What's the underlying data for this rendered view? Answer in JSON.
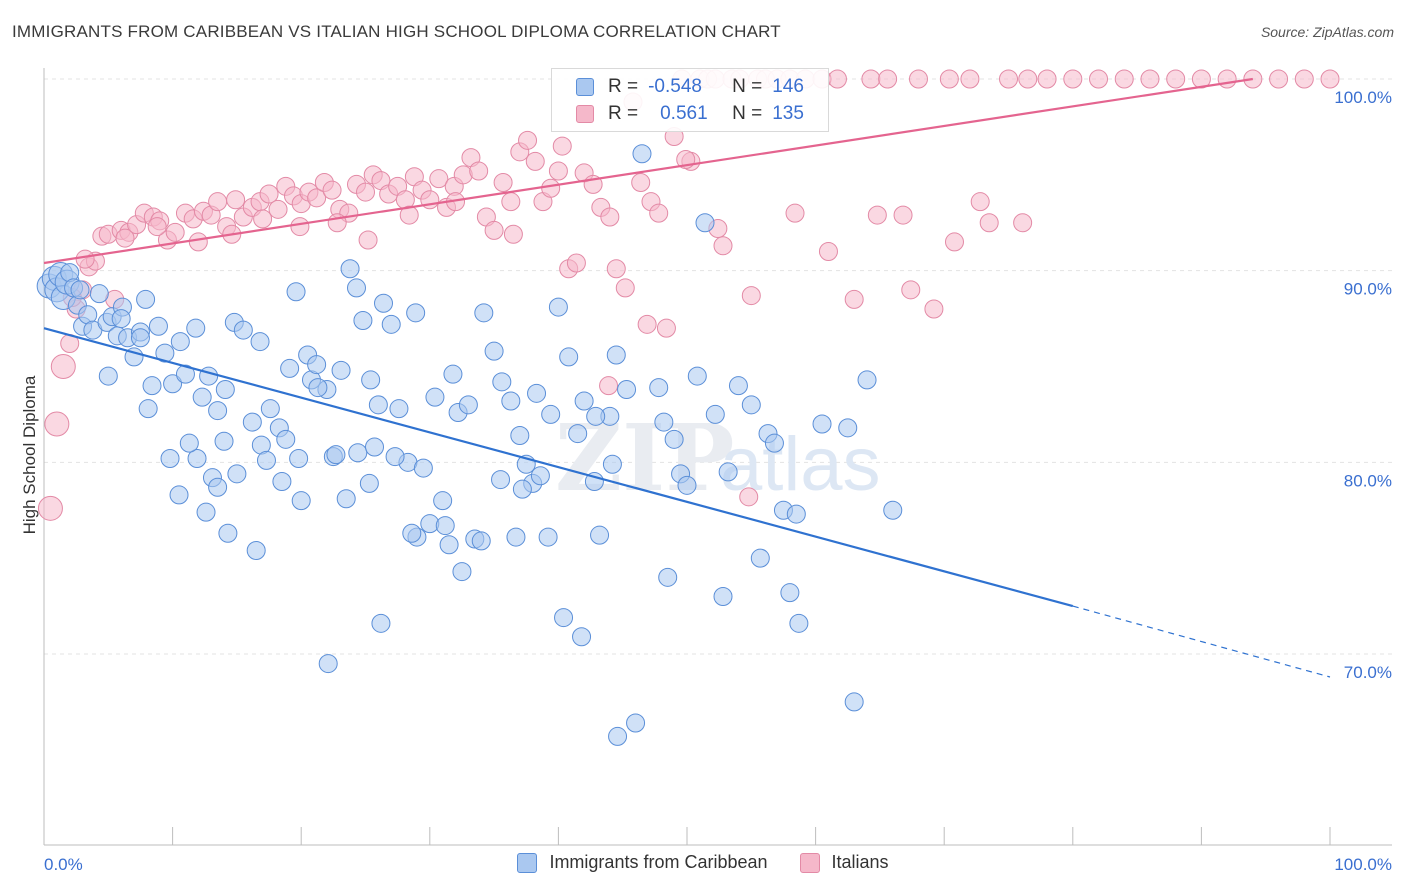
{
  "title": "IMMIGRANTS FROM CARIBBEAN VS ITALIAN HIGH SCHOOL DIPLOMA CORRELATION CHART",
  "source": "Source: ZipAtlas.com",
  "watermark": {
    "zip": "ZIP",
    "atlas": "atlas"
  },
  "legend": {
    "r_label": "R =",
    "n_label": "N =",
    "series": [
      {
        "name": "Immigrants from Caribbean",
        "r": "-0.548",
        "n": "146",
        "fill": "#aac8f0",
        "stroke": "#5b8fd8"
      },
      {
        "name": "Italians",
        "r": "0.561",
        "n": "135",
        "fill": "#f5b8ca",
        "stroke": "#e38aa6"
      }
    ]
  },
  "chart_data": {
    "type": "scatter",
    "title": "IMMIGRANTS FROM CARIBBEAN VS ITALIAN HIGH SCHOOL DIPLOMA CORRELATION CHART",
    "xlabel": "",
    "ylabel": "High School Diploma",
    "xlim": [
      0,
      100
    ],
    "ylim": [
      60,
      102.5
    ],
    "x_ticks": [
      0,
      100
    ],
    "x_tick_labels": [
      "0.0%",
      "100.0%"
    ],
    "y_ticks": [
      70,
      80,
      90,
      100
    ],
    "y_tick_labels": [
      "70.0%",
      "80.0%",
      "90.0%",
      "100.0%"
    ],
    "grid": true,
    "legend_position": "top-center",
    "colors": {
      "caribbean": "#4a86d8",
      "italians": "#e8739a",
      "caribbean_line": "#2f72d0",
      "italians_line": "#e4648f"
    },
    "series": [
      {
        "name": "Immigrants from Caribbean",
        "r": -0.548,
        "n": 146,
        "trend": {
          "x0": 0,
          "y0": 87.0,
          "x1": 80,
          "y1": 72.5,
          "dash_to_x": 100,
          "dash_to_y": 68.8
        },
        "points": [
          [
            0.4,
            89.2
          ],
          [
            0.8,
            89.6
          ],
          [
            1.0,
            89.0
          ],
          [
            1.3,
            89.8
          ],
          [
            1.5,
            88.6
          ],
          [
            1.8,
            89.4
          ],
          [
            2.0,
            89.9
          ],
          [
            2.3,
            89.1
          ],
          [
            2.6,
            88.2
          ],
          [
            3.0,
            87.1
          ],
          [
            3.4,
            87.7
          ],
          [
            3.8,
            86.9
          ],
          [
            4.3,
            88.8
          ],
          [
            4.9,
            87.3
          ],
          [
            5.3,
            87.6
          ],
          [
            5.7,
            86.6
          ],
          [
            6.1,
            88.1
          ],
          [
            6.5,
            86.5
          ],
          [
            7.0,
            85.5
          ],
          [
            7.5,
            86.8
          ],
          [
            7.9,
            88.5
          ],
          [
            8.4,
            84.0
          ],
          [
            8.9,
            87.1
          ],
          [
            9.4,
            85.7
          ],
          [
            10.0,
            84.1
          ],
          [
            10.6,
            86.3
          ],
          [
            11.0,
            84.6
          ],
          [
            11.8,
            87.0
          ],
          [
            12.3,
            83.4
          ],
          [
            12.8,
            84.5
          ],
          [
            13.5,
            82.7
          ],
          [
            14.0,
            81.1
          ],
          [
            14.8,
            87.3
          ],
          [
            15.5,
            86.9
          ],
          [
            16.2,
            82.1
          ],
          [
            16.9,
            80.9
          ],
          [
            17.6,
            82.8
          ],
          [
            18.3,
            81.8
          ],
          [
            19.1,
            84.9
          ],
          [
            19.6,
            88.9
          ],
          [
            20.5,
            85.6
          ],
          [
            20.8,
            84.3
          ],
          [
            21.2,
            85.1
          ],
          [
            22.0,
            83.8
          ],
          [
            22.5,
            80.3
          ],
          [
            23.1,
            84.8
          ],
          [
            23.8,
            90.1
          ],
          [
            24.3,
            89.1
          ],
          [
            24.8,
            87.4
          ],
          [
            25.4,
            84.3
          ],
          [
            26.0,
            83.0
          ],
          [
            26.4,
            88.3
          ],
          [
            27.0,
            87.2
          ],
          [
            27.6,
            82.8
          ],
          [
            28.3,
            80.0
          ],
          [
            28.9,
            87.8
          ],
          [
            29.5,
            79.7
          ],
          [
            30.4,
            83.4
          ],
          [
            31.0,
            78.0
          ],
          [
            31.8,
            84.6
          ],
          [
            32.2,
            82.6
          ],
          [
            33.0,
            83.0
          ],
          [
            33.5,
            76.0
          ],
          [
            34.2,
            87.8
          ],
          [
            35.0,
            85.8
          ],
          [
            35.6,
            84.2
          ],
          [
            36.3,
            83.2
          ],
          [
            37.0,
            81.4
          ],
          [
            37.5,
            79.9
          ],
          [
            38.0,
            78.9
          ],
          [
            38.6,
            79.3
          ],
          [
            39.4,
            82.5
          ],
          [
            40.0,
            88.1
          ],
          [
            40.8,
            85.5
          ],
          [
            41.5,
            81.5
          ],
          [
            42.0,
            83.2
          ],
          [
            42.8,
            79.0
          ],
          [
            43.2,
            76.2
          ],
          [
            44.0,
            82.4
          ],
          [
            44.5,
            85.6
          ],
          [
            45.3,
            83.8
          ],
          [
            46.5,
            96.1
          ],
          [
            47.8,
            83.9
          ],
          [
            48.2,
            82.1
          ],
          [
            49.0,
            81.2
          ],
          [
            49.5,
            79.4
          ],
          [
            50.0,
            78.8
          ],
          [
            50.8,
            84.5
          ],
          [
            51.4,
            92.5
          ],
          [
            52.2,
            82.5
          ],
          [
            53.2,
            79.5
          ],
          [
            54.0,
            84.0
          ],
          [
            55.0,
            83.0
          ],
          [
            56.3,
            81.5
          ],
          [
            56.8,
            81.0
          ],
          [
            57.5,
            77.5
          ],
          [
            58.5,
            77.3
          ],
          [
            60.5,
            82.0
          ],
          [
            62.5,
            81.8
          ],
          [
            64.0,
            84.3
          ],
          [
            66.0,
            77.5
          ],
          [
            5.0,
            84.5
          ],
          [
            7.5,
            86.5
          ],
          [
            9.8,
            80.2
          ],
          [
            10.5,
            78.3
          ],
          [
            11.9,
            80.2
          ],
          [
            12.6,
            77.4
          ],
          [
            13.1,
            79.2
          ],
          [
            13.5,
            78.7
          ],
          [
            14.3,
            76.3
          ],
          [
            15.0,
            79.4
          ],
          [
            16.5,
            75.4
          ],
          [
            17.3,
            80.1
          ],
          [
            18.5,
            79.0
          ],
          [
            19.8,
            80.2
          ],
          [
            20.0,
            78.0
          ],
          [
            21.3,
            83.9
          ],
          [
            22.7,
            80.4
          ],
          [
            23.5,
            78.1
          ],
          [
            24.4,
            80.5
          ],
          [
            25.3,
            78.9
          ],
          [
            26.2,
            71.6
          ],
          [
            27.3,
            80.3
          ],
          [
            29.0,
            76.1
          ],
          [
            30.0,
            76.8
          ],
          [
            31.5,
            75.7
          ],
          [
            32.5,
            74.3
          ],
          [
            34.0,
            75.9
          ],
          [
            35.5,
            79.1
          ],
          [
            37.2,
            78.6
          ],
          [
            39.2,
            76.1
          ],
          [
            40.4,
            71.9
          ],
          [
            41.8,
            70.9
          ],
          [
            44.6,
            65.7
          ],
          [
            46.0,
            66.4
          ],
          [
            48.5,
            74.0
          ],
          [
            52.8,
            73.0
          ],
          [
            55.7,
            75.0
          ],
          [
            58.0,
            73.2
          ],
          [
            58.7,
            71.6
          ],
          [
            63.0,
            67.5
          ],
          [
            2.8,
            89.0
          ],
          [
            6.0,
            87.5
          ],
          [
            8.1,
            82.8
          ],
          [
            11.3,
            81.0
          ],
          [
            14.1,
            83.8
          ],
          [
            16.8,
            86.3
          ],
          [
            18.8,
            81.2
          ],
          [
            22.1,
            69.5
          ],
          [
            25.7,
            80.8
          ],
          [
            28.6,
            76.3
          ],
          [
            31.2,
            76.7
          ],
          [
            36.7,
            76.1
          ],
          [
            38.3,
            83.6
          ],
          [
            42.9,
            82.4
          ],
          [
            44.2,
            79.9
          ]
        ]
      },
      {
        "name": "Italians",
        "r": 0.561,
        "n": 135,
        "trend": {
          "x0": 0,
          "y0": 90.4,
          "x1": 94,
          "y1": 100.0
        },
        "points": [
          [
            0.5,
            77.6
          ],
          [
            1.0,
            82.0
          ],
          [
            1.5,
            85.0
          ],
          [
            2.0,
            86.2
          ],
          [
            2.5,
            88.0
          ],
          [
            3.0,
            89.0
          ],
          [
            3.5,
            90.2
          ],
          [
            4.0,
            90.5
          ],
          [
            4.5,
            91.8
          ],
          [
            5.0,
            91.9
          ],
          [
            5.5,
            88.5
          ],
          [
            6.0,
            92.1
          ],
          [
            6.6,
            92.0
          ],
          [
            7.2,
            92.4
          ],
          [
            7.8,
            93.0
          ],
          [
            8.5,
            92.8
          ],
          [
            9.0,
            92.6
          ],
          [
            9.6,
            91.6
          ],
          [
            10.2,
            92.0
          ],
          [
            11.0,
            93.0
          ],
          [
            11.6,
            92.7
          ],
          [
            12.4,
            93.1
          ],
          [
            13.0,
            92.9
          ],
          [
            13.5,
            93.6
          ],
          [
            14.2,
            92.3
          ],
          [
            14.9,
            93.7
          ],
          [
            15.5,
            92.8
          ],
          [
            16.2,
            93.3
          ],
          [
            16.8,
            93.6
          ],
          [
            17.5,
            94.0
          ],
          [
            18.2,
            93.2
          ],
          [
            18.8,
            94.4
          ],
          [
            19.4,
            93.9
          ],
          [
            20.0,
            93.5
          ],
          [
            20.6,
            94.1
          ],
          [
            21.2,
            93.8
          ],
          [
            21.8,
            94.6
          ],
          [
            22.4,
            94.2
          ],
          [
            23.0,
            93.2
          ],
          [
            23.7,
            93.0
          ],
          [
            24.3,
            94.5
          ],
          [
            25.0,
            94.1
          ],
          [
            25.6,
            95.0
          ],
          [
            26.2,
            94.7
          ],
          [
            26.8,
            94.0
          ],
          [
            27.5,
            94.4
          ],
          [
            28.1,
            93.7
          ],
          [
            28.8,
            94.9
          ],
          [
            29.4,
            94.2
          ],
          [
            30.0,
            93.7
          ],
          [
            30.7,
            94.8
          ],
          [
            31.3,
            93.3
          ],
          [
            31.9,
            94.4
          ],
          [
            32.6,
            95.0
          ],
          [
            33.2,
            95.9
          ],
          [
            33.8,
            95.2
          ],
          [
            34.4,
            92.8
          ],
          [
            35.0,
            92.1
          ],
          [
            35.7,
            94.6
          ],
          [
            36.3,
            93.6
          ],
          [
            37.0,
            96.2
          ],
          [
            37.6,
            96.8
          ],
          [
            38.2,
            95.7
          ],
          [
            38.8,
            93.6
          ],
          [
            39.4,
            94.3
          ],
          [
            40.0,
            95.2
          ],
          [
            40.8,
            90.1
          ],
          [
            41.4,
            90.4
          ],
          [
            42.0,
            95.1
          ],
          [
            42.7,
            94.5
          ],
          [
            43.3,
            93.3
          ],
          [
            43.9,
            84.0
          ],
          [
            44.5,
            90.1
          ],
          [
            45.2,
            89.1
          ],
          [
            45.8,
            98.8
          ],
          [
            46.4,
            94.6
          ],
          [
            47.2,
            93.6
          ],
          [
            47.8,
            93.0
          ],
          [
            48.4,
            87.0
          ],
          [
            49.0,
            97.0
          ],
          [
            49.6,
            100.0
          ],
          [
            50.3,
            95.7
          ],
          [
            51.0,
            100.0
          ],
          [
            51.6,
            100.0
          ],
          [
            52.2,
            100.0
          ],
          [
            52.8,
            91.3
          ],
          [
            53.5,
            100.0
          ],
          [
            54.1,
            100.0
          ],
          [
            54.8,
            78.2
          ],
          [
            55.5,
            100.0
          ],
          [
            56.1,
            100.0
          ],
          [
            57.0,
            100.0
          ],
          [
            58.0,
            100.0
          ],
          [
            59.2,
            100.0
          ],
          [
            60.5,
            100.0
          ],
          [
            61.7,
            100.0
          ],
          [
            63.0,
            88.5
          ],
          [
            64.3,
            100.0
          ],
          [
            65.6,
            100.0
          ],
          [
            66.8,
            92.9
          ],
          [
            68.0,
            100.0
          ],
          [
            69.2,
            88.0
          ],
          [
            70.4,
            100.0
          ],
          [
            72.0,
            100.0
          ],
          [
            73.5,
            92.5
          ],
          [
            75.0,
            100.0
          ],
          [
            76.5,
            100.0
          ],
          [
            78.0,
            100.0
          ],
          [
            80.0,
            100.0
          ],
          [
            82.0,
            100.0
          ],
          [
            84.0,
            100.0
          ],
          [
            86.0,
            100.0
          ],
          [
            88.0,
            100.0
          ],
          [
            90.0,
            100.0
          ],
          [
            92.0,
            100.0
          ],
          [
            94.0,
            100.0
          ],
          [
            96.0,
            100.0
          ],
          [
            98.0,
            100.0
          ],
          [
            100.0,
            100.0
          ],
          [
            40.3,
            96.5
          ],
          [
            36.5,
            91.9
          ],
          [
            32.0,
            93.6
          ],
          [
            28.4,
            92.9
          ],
          [
            25.2,
            91.6
          ],
          [
            22.8,
            92.5
          ],
          [
            19.9,
            92.3
          ],
          [
            17.0,
            92.7
          ],
          [
            14.6,
            91.9
          ],
          [
            12.0,
            91.5
          ],
          [
            8.8,
            92.3
          ],
          [
            6.3,
            91.7
          ],
          [
            3.2,
            90.6
          ],
          [
            2.2,
            88.6
          ],
          [
            44.0,
            92.8
          ],
          [
            46.9,
            87.2
          ],
          [
            49.9,
            95.8
          ],
          [
            52.4,
            92.2
          ],
          [
            55.0,
            88.7
          ],
          [
            58.4,
            93.0
          ],
          [
            61.0,
            91.0
          ],
          [
            64.8,
            92.9
          ],
          [
            67.4,
            89.0
          ],
          [
            70.8,
            91.5
          ],
          [
            72.8,
            93.6
          ],
          [
            76.1,
            92.5
          ]
        ]
      }
    ]
  }
}
